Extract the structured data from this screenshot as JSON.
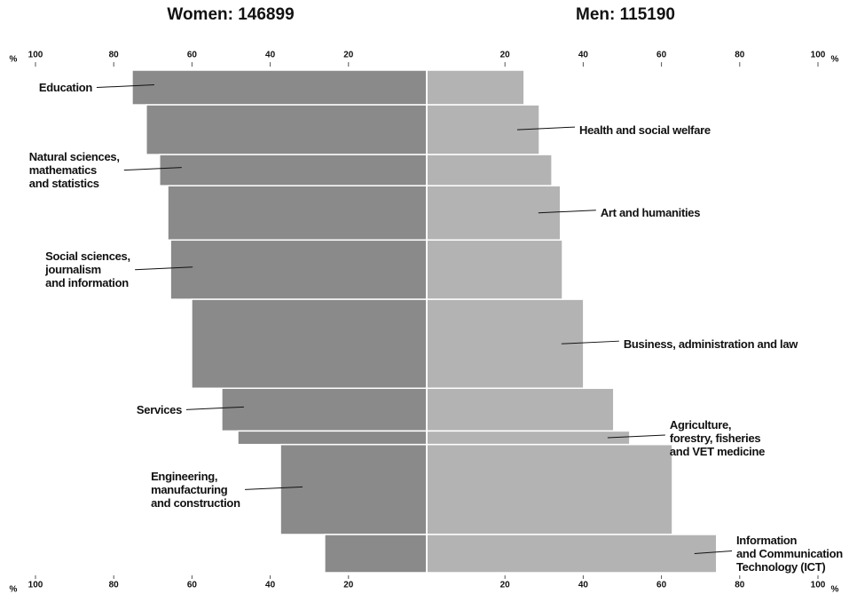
{
  "chart_data": {
    "type": "butterfly",
    "unit_label": "%",
    "categories": [
      "Education",
      "Health and social welfare",
      "Natural sciences,\nmathematics\nand statistics",
      "Art and humanities",
      "Social sciences,\njournalism\nand information",
      "Business, administration and law",
      "Services",
      "Agriculture,\nforestry, fisheries\nand VET medicine",
      "Engineering,\nmanufacturing\nand construction",
      "Information\nand Communication\nTechnology (ICT)"
    ],
    "label_side": [
      "left",
      "right",
      "left",
      "right",
      "left",
      "right",
      "left",
      "right",
      "left",
      "right"
    ],
    "sizes": [
      6.9,
      9.9,
      6.2,
      10.8,
      11.8,
      17.7,
      8.5,
      2.7,
      17.9,
      7.6
    ],
    "series": [
      {
        "name": "Women: 146899",
        "color": "#8a8a8a",
        "values": [
          75.3,
          71.7,
          68.3,
          66.2,
          65.5,
          60.1,
          52.4,
          48.3,
          37.4,
          26.1
        ]
      },
      {
        "name": "Men: 115190",
        "color": "#b3b3b3",
        "values": [
          24.9,
          28.8,
          32.0,
          34.2,
          34.7,
          40.1,
          47.8,
          51.9,
          62.8,
          74.1
        ]
      }
    ],
    "xlim": [
      0,
      100
    ],
    "xticks": [
      0,
      20,
      40,
      60,
      80,
      100
    ]
  }
}
